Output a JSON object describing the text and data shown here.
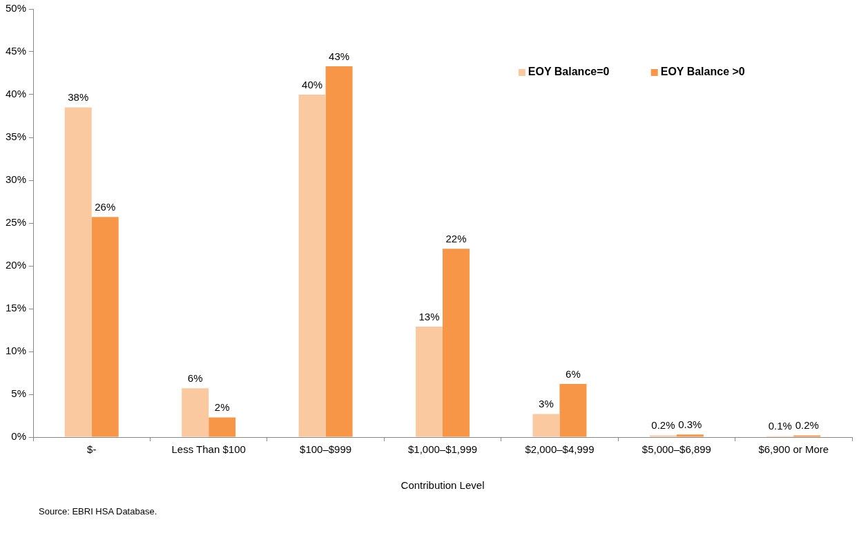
{
  "chart_data": {
    "type": "bar",
    "xlabel": "Contribution Level",
    "categories": [
      "$-",
      "Less Than $100",
      "$100–$999",
      "$1,000–$1,999",
      "$2,000–$4,999",
      "$5,000–$6,899",
      "$6,900 or More"
    ],
    "series": [
      {
        "name": "EOY Balance=0",
        "color": "#fbc9a0",
        "values": [
          38.5,
          5.7,
          40.0,
          12.9,
          2.7,
          0.2,
          0.1
        ],
        "value_labels": [
          "38%",
          "6%",
          "40%",
          "13%",
          "3%",
          "0.2%",
          "0.1%"
        ]
      },
      {
        "name": "EOY Balance >0",
        "color": "#f79646",
        "values": [
          25.7,
          2.3,
          43.3,
          22.0,
          6.2,
          0.3,
          0.2
        ],
        "value_labels": [
          "26%",
          "2%",
          "43%",
          "22%",
          "6%",
          "0.3%",
          "0.2%"
        ]
      }
    ],
    "ylim": [
      0,
      50
    ],
    "yticks": [
      {
        "value": 0,
        "label": "0%"
      },
      {
        "value": 5,
        "label": "5%"
      },
      {
        "value": 10,
        "label": "10%"
      },
      {
        "value": 15,
        "label": "15%"
      },
      {
        "value": 20,
        "label": "20%"
      },
      {
        "value": 25,
        "label": "25%"
      },
      {
        "value": 30,
        "label": "30%"
      },
      {
        "value": 35,
        "label": "35%"
      },
      {
        "value": 40,
        "label": "40%"
      },
      {
        "value": 45,
        "label": "45%"
      },
      {
        "value": 50,
        "label": "50%"
      }
    ],
    "legend": "top right",
    "annotations": [
      "Source: EBRI HSA Database."
    ]
  }
}
